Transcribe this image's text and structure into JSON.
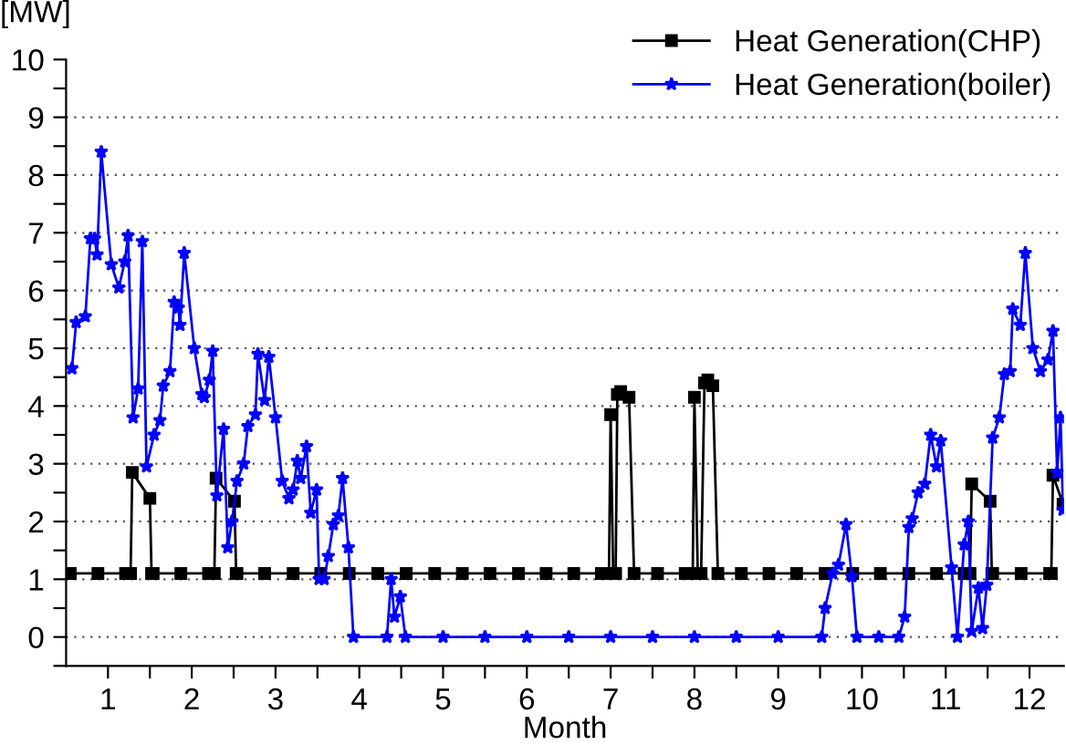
{
  "chart_data": {
    "type": "line",
    "xlabel": "Month",
    "ylabel": "[MW]",
    "xlim": [
      0.5,
      12.41
    ],
    "ylim": [
      -0.5,
      10
    ],
    "xticks": [
      1,
      {
        "value": 1.5,
        "label": null
      },
      2,
      {
        "value": 2.5,
        "label": null
      },
      3,
      {
        "value": 3.5,
        "label": null
      },
      4,
      {
        "value": 4.5,
        "label": null
      },
      5,
      {
        "value": 5.5,
        "label": null
      },
      6,
      {
        "value": 6.5,
        "label": null
      },
      7,
      {
        "value": 7.5,
        "label": null
      },
      8,
      {
        "value": 8.5,
        "label": null
      },
      9,
      {
        "value": 9.5,
        "label": null
      },
      10,
      {
        "value": 10.5,
        "label": null
      },
      11,
      {
        "value": 11.5,
        "label": null
      },
      12
    ],
    "yticks": [
      {
        "value": -0.5,
        "label": null
      },
      0,
      {
        "value": 0.5,
        "label": null
      },
      1,
      {
        "value": 1.5,
        "label": null
      },
      2,
      {
        "value": 2.5,
        "label": null
      },
      3,
      {
        "value": 3.5,
        "label": null
      },
      4,
      {
        "value": 4.5,
        "label": null
      },
      5,
      {
        "value": 5.5,
        "label": null
      },
      6,
      {
        "value": 6.5,
        "label": null
      },
      7,
      {
        "value": 7.5,
        "label": null
      },
      8,
      {
        "value": 8.5,
        "label": null
      },
      9,
      {
        "value": 9.5,
        "label": null
      },
      10
    ],
    "grid": "y",
    "legend": "top right",
    "series": [
      {
        "name": "Heat Generation(CHP)",
        "color": "#000000",
        "marker": "square",
        "x": [
          0.55,
          0.88,
          1.21,
          1.27,
          1.29,
          1.5,
          1.52,
          1.54,
          1.87,
          2.2,
          2.27,
          2.29,
          2.51,
          2.53,
          2.54,
          2.87,
          3.21,
          3.54,
          3.88,
          4.22,
          4.56,
          4.9,
          5.23,
          5.56,
          5.9,
          6.23,
          6.56,
          6.89,
          6.98,
          7.0,
          7.03,
          7.06,
          7.08,
          7.12,
          7.22,
          7.28,
          7.56,
          7.89,
          7.98,
          8.0,
          8.04,
          8.08,
          8.12,
          8.16,
          8.22,
          8.28,
          8.56,
          8.89,
          9.22,
          9.56,
          9.89,
          10.22,
          10.56,
          10.89,
          11.22,
          11.29,
          11.31,
          11.53,
          11.55,
          11.56,
          11.9,
          12.24,
          12.26,
          12.28,
          12.4
        ],
        "values": [
          1.1,
          1.1,
          1.1,
          1.1,
          2.85,
          2.4,
          1.1,
          1.1,
          1.1,
          1.1,
          1.1,
          2.75,
          2.35,
          1.1,
          1.1,
          1.1,
          1.1,
          1.1,
          1.1,
          1.1,
          1.1,
          1.1,
          1.1,
          1.1,
          1.1,
          1.1,
          1.1,
          1.1,
          1.1,
          3.85,
          1.1,
          1.1,
          4.2,
          4.25,
          4.15,
          1.1,
          1.1,
          1.1,
          1.1,
          4.15,
          1.1,
          1.1,
          4.4,
          4.45,
          4.35,
          1.1,
          1.1,
          1.1,
          1.1,
          1.1,
          1.1,
          1.1,
          1.1,
          1.1,
          1.1,
          1.1,
          2.65,
          2.35,
          1.1,
          1.1,
          1.1,
          1.1,
          1.1,
          2.8,
          2.3
        ]
      },
      {
        "name": "Heat Generation(boiler)",
        "color": "#0000ff",
        "marker": "star",
        "x": [
          0.57,
          0.62,
          0.73,
          0.79,
          0.84,
          0.87,
          0.92,
          1.04,
          1.13,
          1.2,
          1.24,
          1.3,
          1.36,
          1.41,
          1.46,
          1.55,
          1.62,
          1.66,
          1.74,
          1.79,
          1.84,
          1.86,
          1.91,
          2.03,
          2.12,
          2.15,
          2.21,
          2.25,
          2.3,
          2.38,
          2.43,
          2.48,
          2.54,
          2.62,
          2.67,
          2.76,
          2.79,
          2.87,
          2.92,
          3.0,
          3.08,
          3.16,
          3.21,
          3.26,
          3.3,
          3.37,
          3.42,
          3.49,
          3.52,
          3.58,
          3.63,
          3.69,
          3.75,
          3.8,
          3.87,
          3.93,
          4.33,
          4.38,
          4.42,
          4.49,
          4.55,
          5.0,
          5.5,
          6.0,
          6.5,
          7.0,
          7.5,
          8.0,
          8.5,
          9.0,
          9.52,
          9.56,
          9.65,
          9.72,
          9.81,
          9.88,
          9.94,
          10.2,
          10.44,
          10.51,
          10.56,
          10.6,
          10.67,
          10.75,
          10.82,
          10.89,
          10.94,
          11.07,
          11.14,
          11.22,
          11.27,
          11.31,
          11.39,
          11.44,
          11.49,
          11.56,
          11.64,
          11.7,
          11.77,
          11.8,
          11.89,
          11.95,
          12.04,
          12.13,
          12.22,
          12.28,
          12.33,
          12.37,
          12.4
        ],
        "values": [
          4.65,
          5.45,
          5.55,
          6.9,
          6.9,
          6.62,
          8.4,
          6.45,
          6.05,
          6.5,
          6.95,
          3.8,
          4.3,
          6.85,
          2.95,
          3.5,
          3.75,
          4.35,
          4.6,
          5.8,
          5.7,
          5.4,
          6.65,
          5.0,
          4.2,
          4.15,
          4.45,
          4.95,
          2.45,
          3.6,
          1.55,
          2.0,
          2.7,
          3.0,
          3.65,
          3.85,
          4.9,
          4.1,
          4.85,
          3.8,
          2.7,
          2.4,
          2.55,
          3.05,
          2.75,
          3.3,
          2.15,
          2.55,
          1.0,
          1.0,
          1.4,
          1.95,
          2.1,
          2.75,
          1.55,
          0,
          0,
          1.0,
          0.35,
          0.7,
          0,
          0,
          0,
          0,
          0,
          0,
          0,
          0,
          0,
          0,
          0,
          0.5,
          1.1,
          1.25,
          1.95,
          1.05,
          0,
          0,
          0,
          0.35,
          1.9,
          2.05,
          2.5,
          2.65,
          3.5,
          2.95,
          3.4,
          1.2,
          0,
          1.6,
          2.0,
          0.1,
          0.85,
          0.15,
          0.9,
          3.45,
          3.8,
          4.55,
          4.6,
          5.68,
          5.4,
          6.65,
          5.0,
          4.6,
          4.8,
          5.3,
          2.85,
          3.8,
          2.2
        ]
      }
    ]
  }
}
